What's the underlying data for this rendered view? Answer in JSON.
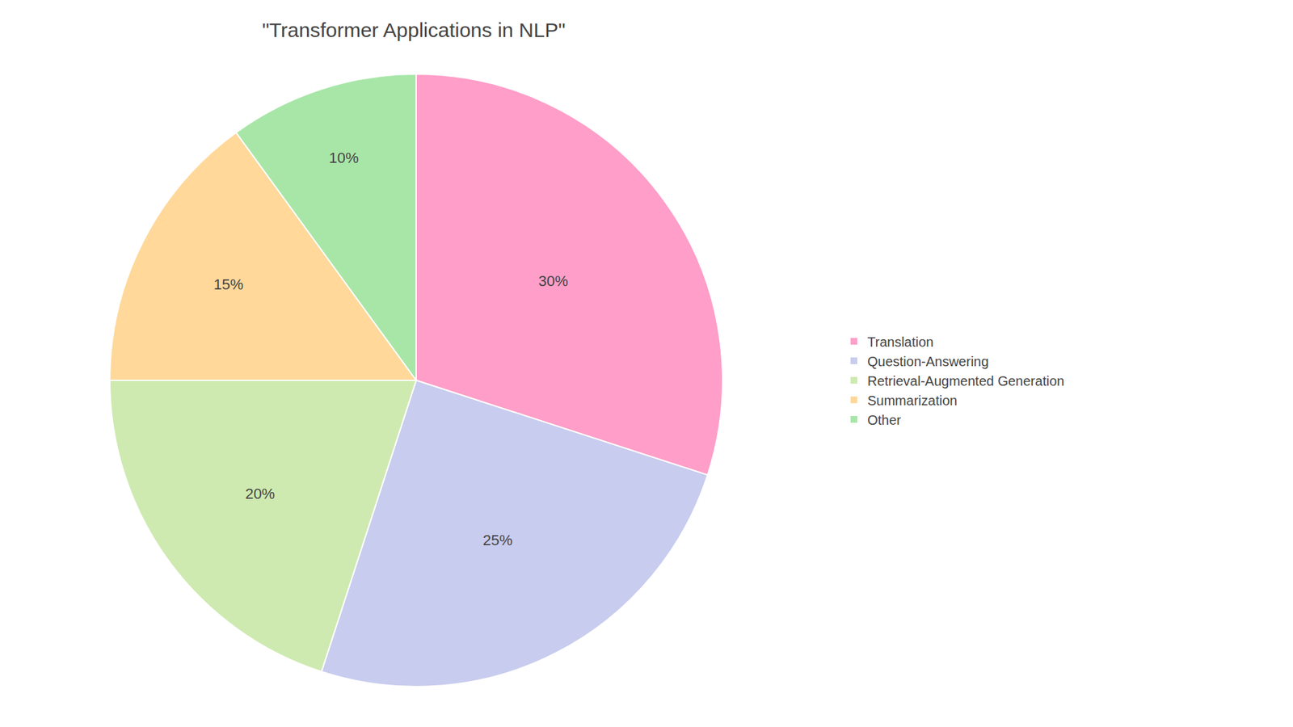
{
  "chart_data": {
    "type": "pie",
    "title": "\"Transformer Applications in NLP\"",
    "categories": [
      "Translation",
      "Question-Answering",
      "Retrieval-Augmented Generation",
      "Summarization",
      "Other"
    ],
    "values": [
      30,
      25,
      20,
      15,
      10
    ],
    "value_labels": [
      "30%",
      "25%",
      "20%",
      "15%",
      "10%"
    ],
    "colors": [
      "#FF9EC8",
      "#C8CCEE",
      "#CEEAB0",
      "#FFD89A",
      "#A8E6A8"
    ],
    "data_labels": true,
    "legend": "right"
  }
}
